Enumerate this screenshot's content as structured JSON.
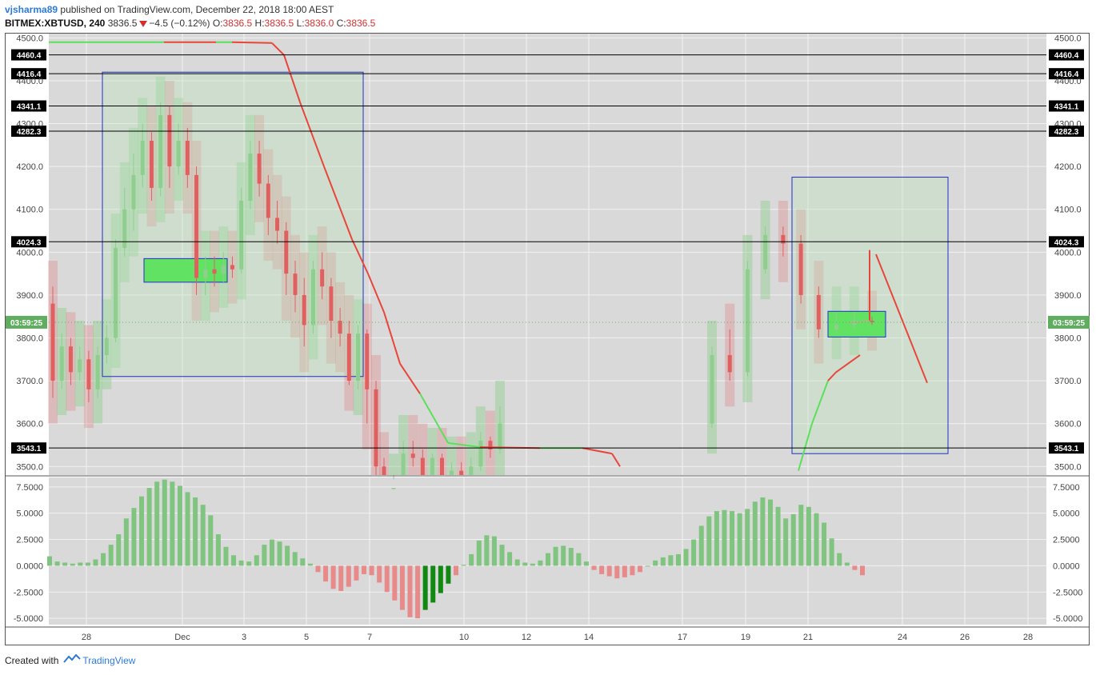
{
  "header": {
    "author": "vjsharma89",
    "published_text": "published on TradingView.com, December 22, 2018 18:00 AEST",
    "symbol": "BITMEX:XBTUSD, 240",
    "last": "3836.5",
    "change": "−4.5 (−0.12%)",
    "o_label": "O:",
    "o_value": "3836.5",
    "h_label": "H:",
    "h_value": "3836.5",
    "l_label": "L:",
    "l_value": "3836.0",
    "c_label": "C:",
    "c_value": "3836.5"
  },
  "footer": {
    "created_with": "Created with",
    "brand": "TradingView"
  },
  "colors": {
    "up": "#8fce8f",
    "down": "#e06060",
    "hline": "#000000",
    "box": "#1f2fc8",
    "greenzone": "#62e262",
    "ma_red": "#e8463a",
    "ma_green": "#5be05b",
    "bg": "#d9d9d9"
  },
  "chart_data": [
    {
      "type": "candlestick",
      "title": "",
      "ylim": [
        3480,
        4510
      ],
      "y_ticks": [
        "4500.0",
        "4400.0",
        "4300.0",
        "4200.0",
        "4100.0",
        "4000.0",
        "3900.0",
        "3800.0",
        "3700.0",
        "3600.0",
        "3500.0"
      ],
      "x_ticks": [
        "28",
        "Dec",
        "3",
        "5",
        "7",
        "10",
        "12",
        "14",
        "17",
        "19",
        "21",
        "24",
        "26",
        "28"
      ],
      "price_levels": [
        "4460.4",
        "4416.4",
        "4341.1",
        "4282.3",
        "4024.3",
        "3543.1"
      ],
      "current_label": "03:59:25",
      "current_value": 3836.5,
      "candles": [
        [
          3880,
          3700,
          3920,
          3660
        ],
        [
          3700,
          3780,
          3810,
          3680
        ],
        [
          3780,
          3720,
          3800,
          3690
        ],
        [
          3720,
          3750,
          3780,
          3700
        ],
        [
          3750,
          3680,
          3770,
          3650
        ],
        [
          3680,
          3760,
          3780,
          3660
        ],
        [
          3760,
          3800,
          3830,
          3740
        ],
        [
          3800,
          4010,
          4030,
          3790
        ],
        [
          4010,
          4100,
          4150,
          3990
        ],
        [
          4100,
          4180,
          4230,
          4050
        ],
        [
          4180,
          4260,
          4300,
          4150
        ],
        [
          4260,
          4150,
          4280,
          4120
        ],
        [
          4150,
          4320,
          4350,
          4130
        ],
        [
          4320,
          4200,
          4340,
          4150
        ],
        [
          4200,
          4260,
          4300,
          4180
        ],
        [
          4260,
          4180,
          4290,
          4150
        ],
        [
          4180,
          3940,
          4200,
          3900
        ],
        [
          3940,
          3960,
          3990,
          3900
        ],
        [
          3960,
          3950,
          3990,
          3920
        ],
        [
          3950,
          3970,
          4000,
          3930
        ],
        [
          3970,
          3960,
          3990,
          3940
        ],
        [
          3960,
          4120,
          4150,
          3950
        ],
        [
          4120,
          4230,
          4260,
          4100
        ],
        [
          4230,
          4160,
          4260,
          4130
        ],
        [
          4160,
          4080,
          4180,
          4040
        ],
        [
          4080,
          4050,
          4120,
          4020
        ],
        [
          4050,
          3950,
          4070,
          3900
        ],
        [
          3950,
          3900,
          3980,
          3860
        ],
        [
          3900,
          3830,
          3940,
          3780
        ],
        [
          3830,
          3960,
          3980,
          3810
        ],
        [
          3960,
          3920,
          4000,
          3890
        ],
        [
          3920,
          3840,
          3940,
          3800
        ],
        [
          3840,
          3810,
          3870,
          3780
        ],
        [
          3810,
          3700,
          3840,
          3690
        ],
        [
          3700,
          3810,
          3830,
          3680
        ],
        [
          3810,
          3680,
          3820,
          3600
        ],
        [
          3680,
          3500,
          3700,
          3450
        ],
        [
          3500,
          3380,
          3520,
          3350
        ],
        [
          3380,
          3450,
          3470,
          3360
        ],
        [
          3450,
          3530,
          3560,
          3440
        ],
        [
          3530,
          3520,
          3560,
          3500
        ],
        [
          3520,
          3470,
          3540,
          3450
        ],
        [
          3470,
          3520,
          3530,
          3460
        ],
        [
          3520,
          3480,
          3530,
          3460
        ],
        [
          3480,
          3490,
          3510,
          3470
        ],
        [
          3490,
          3470,
          3510,
          3450
        ],
        [
          3470,
          3500,
          3520,
          3460
        ],
        [
          3500,
          3560,
          3580,
          3490
        ],
        [
          3560,
          3540,
          3570,
          3520
        ],
        [
          3540,
          3600,
          3640,
          3530
        ],
        [
          3600,
          3760,
          3780,
          3590
        ],
        [
          3760,
          3720,
          3820,
          3700
        ],
        [
          3720,
          3960,
          3980,
          3710
        ],
        [
          3960,
          4040,
          4060,
          3950
        ],
        [
          4040,
          4020,
          4060,
          3990
        ],
        [
          4020,
          3900,
          4040,
          3880
        ],
        [
          3900,
          3820,
          3920,
          3800
        ],
        [
          3820,
          3830,
          3860,
          3810
        ],
        [
          3830,
          3840,
          3860,
          3820
        ],
        [
          3840,
          3836.5,
          3850,
          3830
        ]
      ],
      "histogram": {
        "ylim": [
          -5.6,
          8.4
        ],
        "y_ticks": [
          "7.5000",
          "5.0000",
          "2.5000",
          "0.0000",
          "-2.5000",
          "-5.0000"
        ],
        "values": [
          0.9,
          0.4,
          0.3,
          0.2,
          0.3,
          0.3,
          0.6,
          1.2,
          2.0,
          3.0,
          4.5,
          5.5,
          6.6,
          7.4,
          8.0,
          8.2,
          8.0,
          7.6,
          7.0,
          6.5,
          5.8,
          4.8,
          3.0,
          1.8,
          1.0,
          0.5,
          0.4,
          1.0,
          2.0,
          2.5,
          2.3,
          1.9,
          1.3,
          0.7,
          0.2,
          -0.6,
          -1.5,
          -2.2,
          -2.4,
          -2.0,
          -1.4,
          -0.8,
          -0.9,
          -1.6,
          -2.5,
          -3.3,
          -4.2,
          -4.9,
          -5.0,
          -4.2,
          -3.5,
          -2.6,
          -1.7,
          -0.9,
          0.1,
          1.1,
          2.4,
          2.9,
          2.8,
          2.0,
          1.3,
          0.6,
          0.3,
          0.2,
          0.5,
          1.2,
          1.8,
          1.9,
          1.7,
          1.2,
          0.4,
          -0.4,
          -0.8,
          -1.0,
          -1.2,
          -1.1,
          -0.9,
          -0.6,
          0.0,
          0.5,
          0.8,
          1.0,
          1.1,
          1.6,
          2.5,
          3.8,
          4.7,
          5.2,
          5.3,
          5.2,
          5.0,
          5.4,
          6.1,
          6.5,
          6.3,
          5.6,
          4.5,
          4.9,
          5.8,
          5.6,
          5.0,
          4.1,
          2.6,
          1.2,
          0.3,
          -0.4,
          -0.9
        ]
      }
    }
  ]
}
